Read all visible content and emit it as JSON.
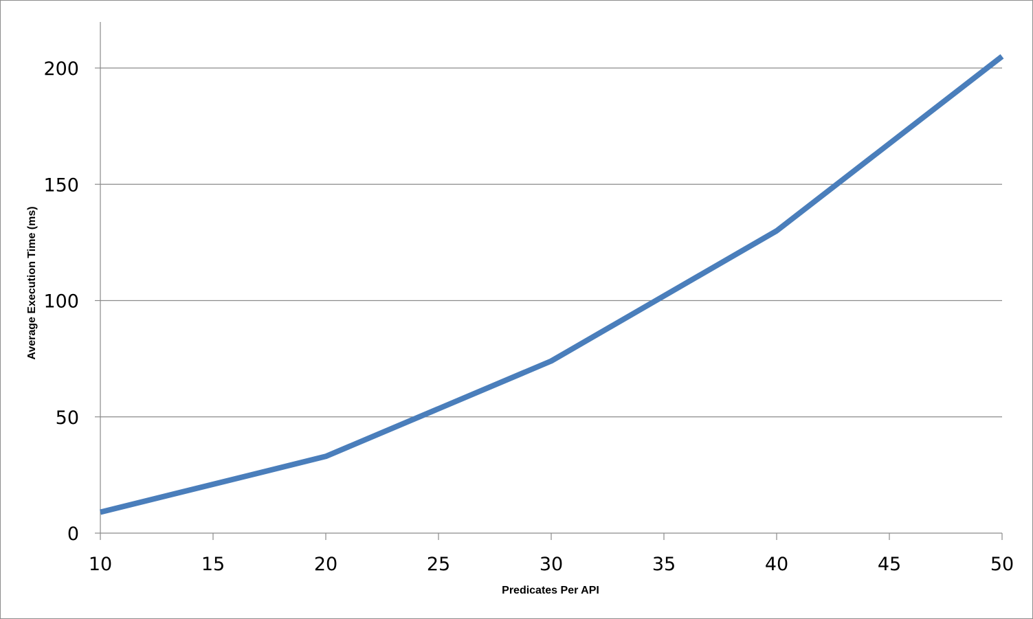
{
  "chart_data": {
    "type": "line",
    "title": "",
    "xlabel": "Predicates Per API",
    "ylabel": "Average Execution Time (ms)",
    "xlim": [
      10,
      50
    ],
    "ylim": [
      0,
      220
    ],
    "x_ticks": [
      10,
      15,
      20,
      25,
      30,
      35,
      40,
      45,
      50
    ],
    "y_ticks": [
      0,
      50,
      100,
      150,
      200
    ],
    "grid": "horizontal",
    "legend": "none",
    "series": [
      {
        "color": "#4a7ebb",
        "x": [
          10,
          20,
          30,
          40,
          50
        ],
        "y": [
          9,
          33,
          74,
          130,
          205
        ]
      }
    ]
  }
}
